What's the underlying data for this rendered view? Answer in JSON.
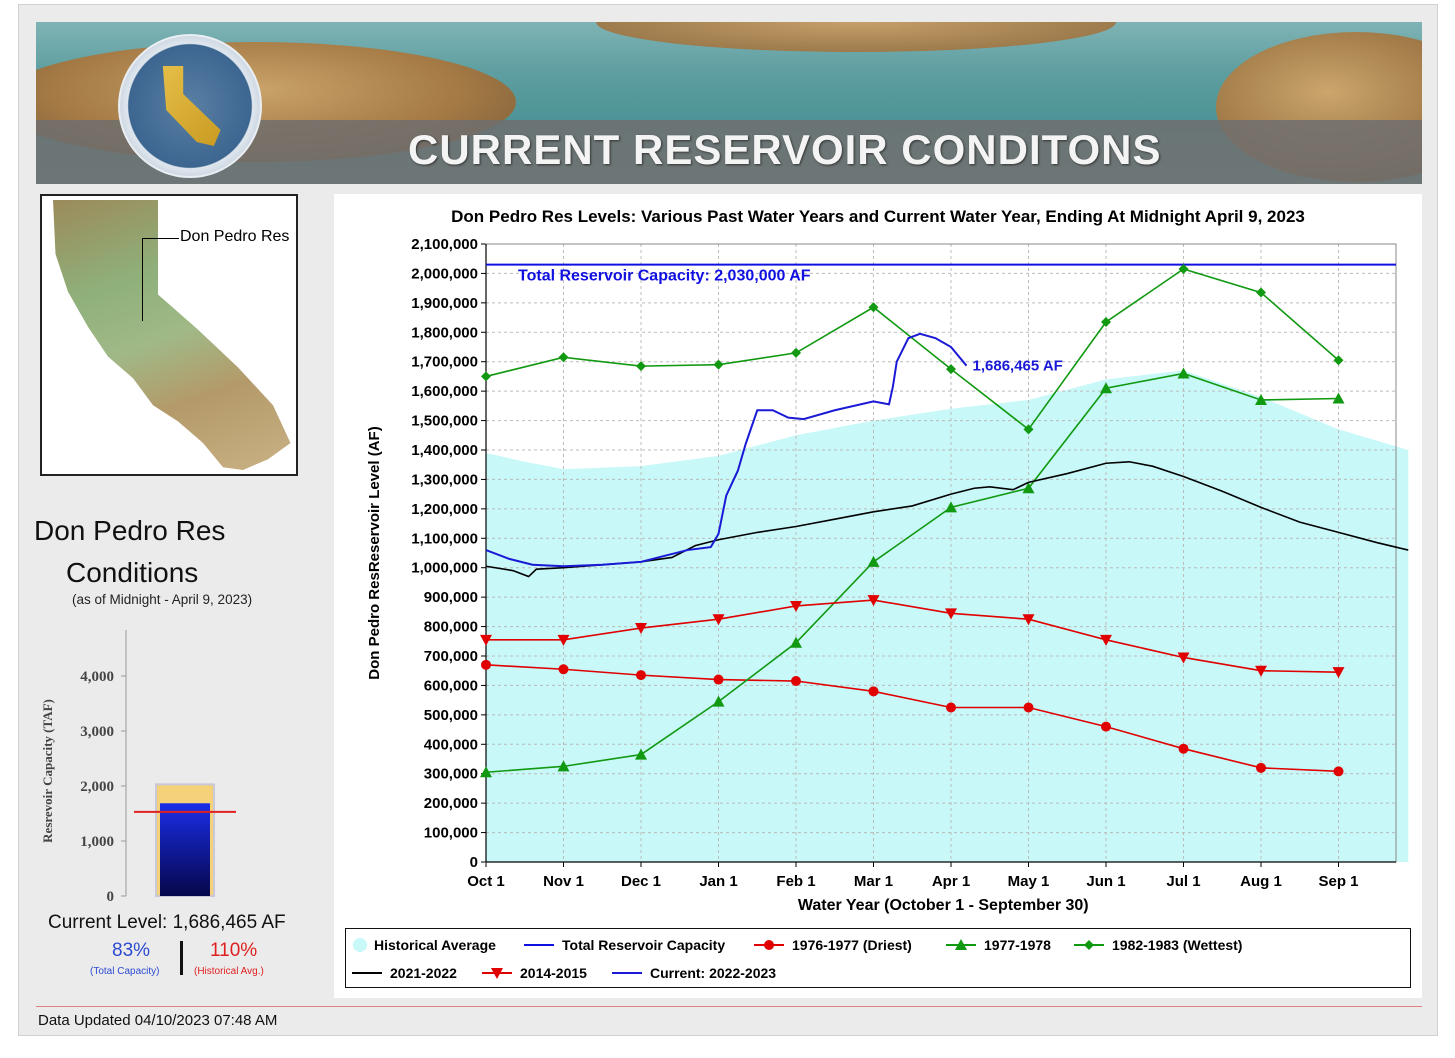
{
  "banner": {
    "title": "CURRENT RESERVOIR CONDITONS"
  },
  "map": {
    "label": "Don Pedro Res"
  },
  "conditions": {
    "title_line1": "Don Pedro Res",
    "title_line2": "Conditions",
    "as_of": "(as of Midnight - April 9, 2023)",
    "current_level": "Current Level: 1,686,465 AF",
    "pct_total": "83%",
    "pct_total_label": "(Total Capacity)",
    "pct_hist": "110%",
    "pct_hist_label": "(Historical Avg.)"
  },
  "footer": {
    "updated": "Data Updated 04/10/2023 07:48 AM"
  },
  "colors": {
    "capacity": "#1010e0",
    "current": "#1a1ad6",
    "driest": "#e00000",
    "wet1978": "#119911",
    "wet1983": "#119911",
    "y2122": "#000000",
    "y1415": "#e00000",
    "histfill": "#c8f8f8"
  },
  "chart_data": [
    {
      "type": "line",
      "title": "Don Pedro Res Levels: Various Past Water Years and Current Water Year, Ending At Midnight April 9, 2023",
      "xlabel": "Water Year (October 1 - September 30)",
      "ylabel": "Don Pedro ResReservoir Level (AF)",
      "ylim": [
        0,
        2100000
      ],
      "ytick_labels": [
        "0",
        "100,000",
        "200,000",
        "300,000",
        "400,000",
        "500,000",
        "600,000",
        "700,000",
        "800,000",
        "900,000",
        "1,000,000",
        "1,100,000",
        "1,200,000",
        "1,300,000",
        "1,400,000",
        "1,500,000",
        "1,600,000",
        "1,700,000",
        "1,800,000",
        "1,900,000",
        "2,000,000",
        "2,100,000"
      ],
      "categories": [
        "Oct 1",
        "Nov 1",
        "Dec 1",
        "Jan 1",
        "Feb 1",
        "Mar 1",
        "Apr 1",
        "May 1",
        "Jun 1",
        "Jul 1",
        "Aug 1",
        "Sep 1"
      ],
      "capacity_label": "Total Reservoir Capacity: 2,030,000 AF",
      "capacity": 2030000,
      "current_label": "1,686,465 AF",
      "grid": true,
      "legend_position": "bottom",
      "legend": [
        "Historical Average",
        "Total Reservoir Capacity",
        "1976-1977 (Driest)",
        "1977-1978",
        "1982-1983 (Wettest)",
        "2021-2022",
        "2014-2015",
        "Current: 2022-2023"
      ],
      "series": [
        {
          "name": "Historical Average",
          "kind": "area",
          "x": [
            0,
            0.5,
            1,
            2,
            3,
            4,
            5,
            6,
            7,
            8,
            9,
            10,
            11,
            11.9
          ],
          "values": [
            1390000,
            1360000,
            1335000,
            1345000,
            1380000,
            1450000,
            1500000,
            1540000,
            1570000,
            1640000,
            1670000,
            1580000,
            1470000,
            1400000
          ]
        },
        {
          "name": "1976-1977 (Driest)",
          "kind": "circle",
          "x": [
            0,
            1,
            2,
            3,
            4,
            5,
            6,
            7,
            8,
            9,
            10,
            11
          ],
          "values": [
            670000,
            655000,
            635000,
            620000,
            615000,
            580000,
            525000,
            525000,
            460000,
            385000,
            320000,
            308000
          ]
        },
        {
          "name": "1977-1978",
          "kind": "triangle-up",
          "x": [
            0,
            1,
            2,
            3,
            4,
            5,
            6,
            7,
            8,
            9,
            10,
            11
          ],
          "values": [
            305000,
            325000,
            365000,
            545000,
            745000,
            1020000,
            1205000,
            1270000,
            1610000,
            1660000,
            1570000,
            1575000
          ]
        },
        {
          "name": "1982-1983 (Wettest)",
          "kind": "diamond",
          "x": [
            0,
            1,
            2,
            3,
            4,
            5,
            6,
            7,
            8,
            9,
            10,
            11
          ],
          "values": [
            1650000,
            1715000,
            1685000,
            1690000,
            1730000,
            1885000,
            1675000,
            1470000,
            1835000,
            2015000,
            1935000,
            1705000
          ]
        },
        {
          "name": "2014-2015",
          "kind": "triangle-down",
          "x": [
            0,
            1,
            2,
            3,
            4,
            5,
            6,
            7,
            8,
            9,
            10,
            11
          ],
          "values": [
            755000,
            755000,
            795000,
            825000,
            870000,
            890000,
            845000,
            825000,
            755000,
            695000,
            650000,
            645000
          ]
        },
        {
          "name": "2021-2022",
          "kind": "line",
          "x": [
            0,
            0.35,
            0.55,
            0.65,
            1,
            1.5,
            2,
            2.4,
            2.7,
            3,
            3.5,
            4,
            4.5,
            5,
            5.5,
            6,
            6.3,
            6.5,
            6.8,
            7,
            7.5,
            8,
            8.3,
            8.6,
            9,
            9.5,
            10,
            10.5,
            11,
            11.5,
            11.9
          ],
          "values": [
            1005000,
            990000,
            970000,
            995000,
            1000000,
            1010000,
            1020000,
            1035000,
            1075000,
            1095000,
            1120000,
            1140000,
            1165000,
            1190000,
            1210000,
            1250000,
            1270000,
            1275000,
            1265000,
            1290000,
            1320000,
            1355000,
            1360000,
            1345000,
            1310000,
            1260000,
            1205000,
            1155000,
            1120000,
            1085000,
            1060000
          ]
        },
        {
          "name": "Current: 2022-2023",
          "kind": "line",
          "x": [
            0,
            0.3,
            0.6,
            1,
            1.5,
            2,
            2.3,
            2.6,
            2.9,
            3,
            3.1,
            3.25,
            3.35,
            3.5,
            3.7,
            3.9,
            4.1,
            4.5,
            5,
            5.2,
            5.25,
            5.3,
            5.45,
            5.6,
            5.8,
            6,
            6.2
          ],
          "values": [
            1060000,
            1030000,
            1010000,
            1005000,
            1010000,
            1020000,
            1040000,
            1060000,
            1070000,
            1115000,
            1245000,
            1330000,
            1420000,
            1535000,
            1535000,
            1510000,
            1505000,
            1535000,
            1565000,
            1555000,
            1615000,
            1700000,
            1780000,
            1795000,
            1780000,
            1750000,
            1686465
          ]
        }
      ]
    },
    {
      "type": "bar",
      "ylabel": "Resrevoir Capacity (TAF)",
      "ylim": [
        0,
        4000
      ],
      "ytick_labels": [
        "0",
        "1,000",
        "2,000",
        "3,000",
        "4,000"
      ],
      "capacity": 2030,
      "current": 1686,
      "historical_avg": 1530
    }
  ]
}
